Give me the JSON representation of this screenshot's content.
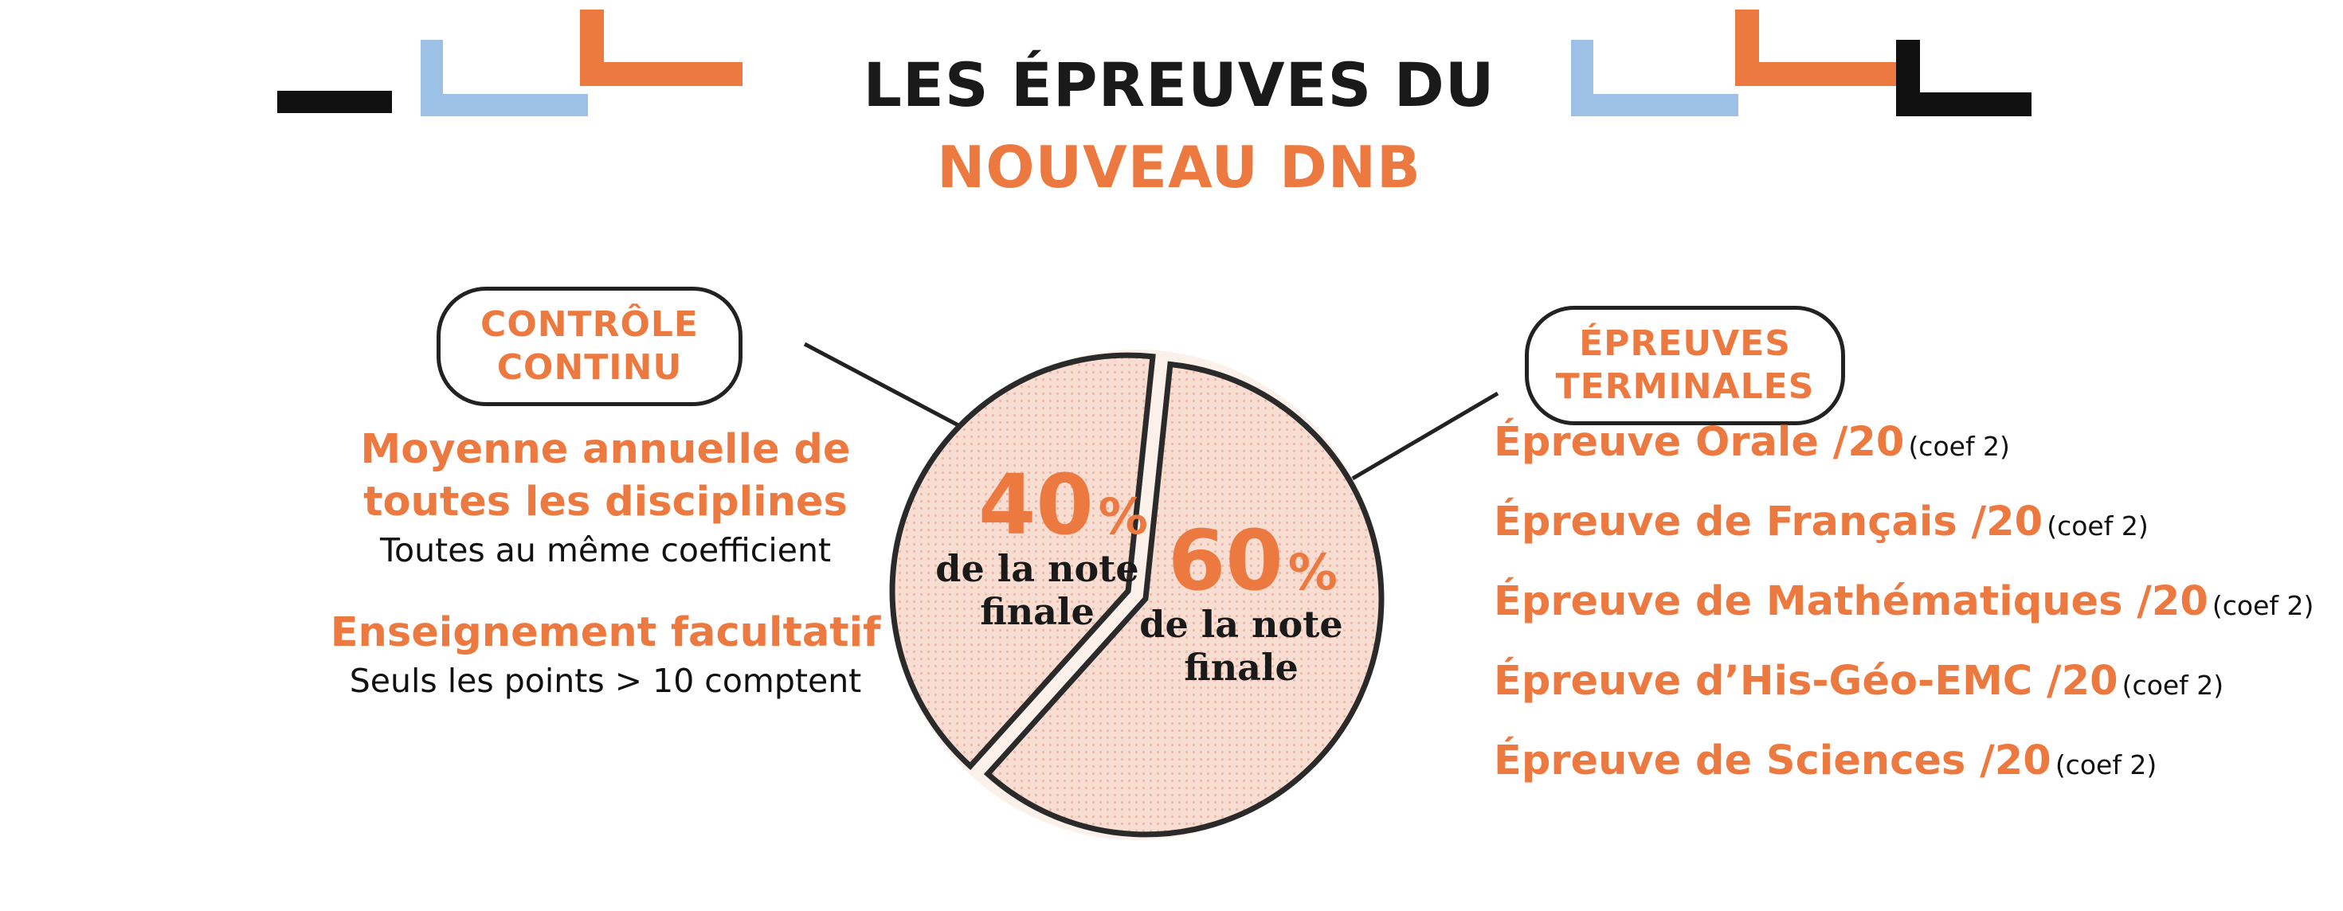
{
  "title": {
    "line1": "LES ÉPREUVES DU",
    "line2": "NOUVEAU DNB"
  },
  "colors": {
    "orange": "#ec7a40",
    "blue": "#9dc1e6",
    "black": "#111111",
    "pie_fill": "#f8ddd3"
  },
  "controle_continu": {
    "badge_line1": "CONTRÔLE",
    "badge_line2": "CONTINU",
    "heading_line1": "Moyenne annuelle de",
    "heading_line2": "toutes les disciplines",
    "subtext": "Toutes au même coefficient",
    "heading2": "Enseignement facultatif",
    "subtext2": "Seuls les points > 10 comptent"
  },
  "pie": {
    "slices": [
      {
        "percent": 40,
        "label": "40",
        "pct_sign": "%",
        "caption_line1": "de la note",
        "caption_line2": "finale"
      },
      {
        "percent": 60,
        "label": "60",
        "pct_sign": "%",
        "caption_line1": "de la note",
        "caption_line2": "finale"
      }
    ]
  },
  "epreuves_terminales": {
    "badge_line1": "ÉPREUVES",
    "badge_line2": "TERMINALES",
    "items": [
      {
        "label": "Épreuve Orale /20",
        "coef": "(coef 2)"
      },
      {
        "label": "Épreuve de Français /20",
        "coef": "(coef 2)"
      },
      {
        "label": "Épreuve de Mathématiques /20",
        "coef": "(coef 2)"
      },
      {
        "label": "Épreuve d’His-Géo-EMC /20",
        "coef": "(coef 2)"
      },
      {
        "label": "Épreuve de Sciences /20",
        "coef": "(coef 2)"
      }
    ]
  }
}
